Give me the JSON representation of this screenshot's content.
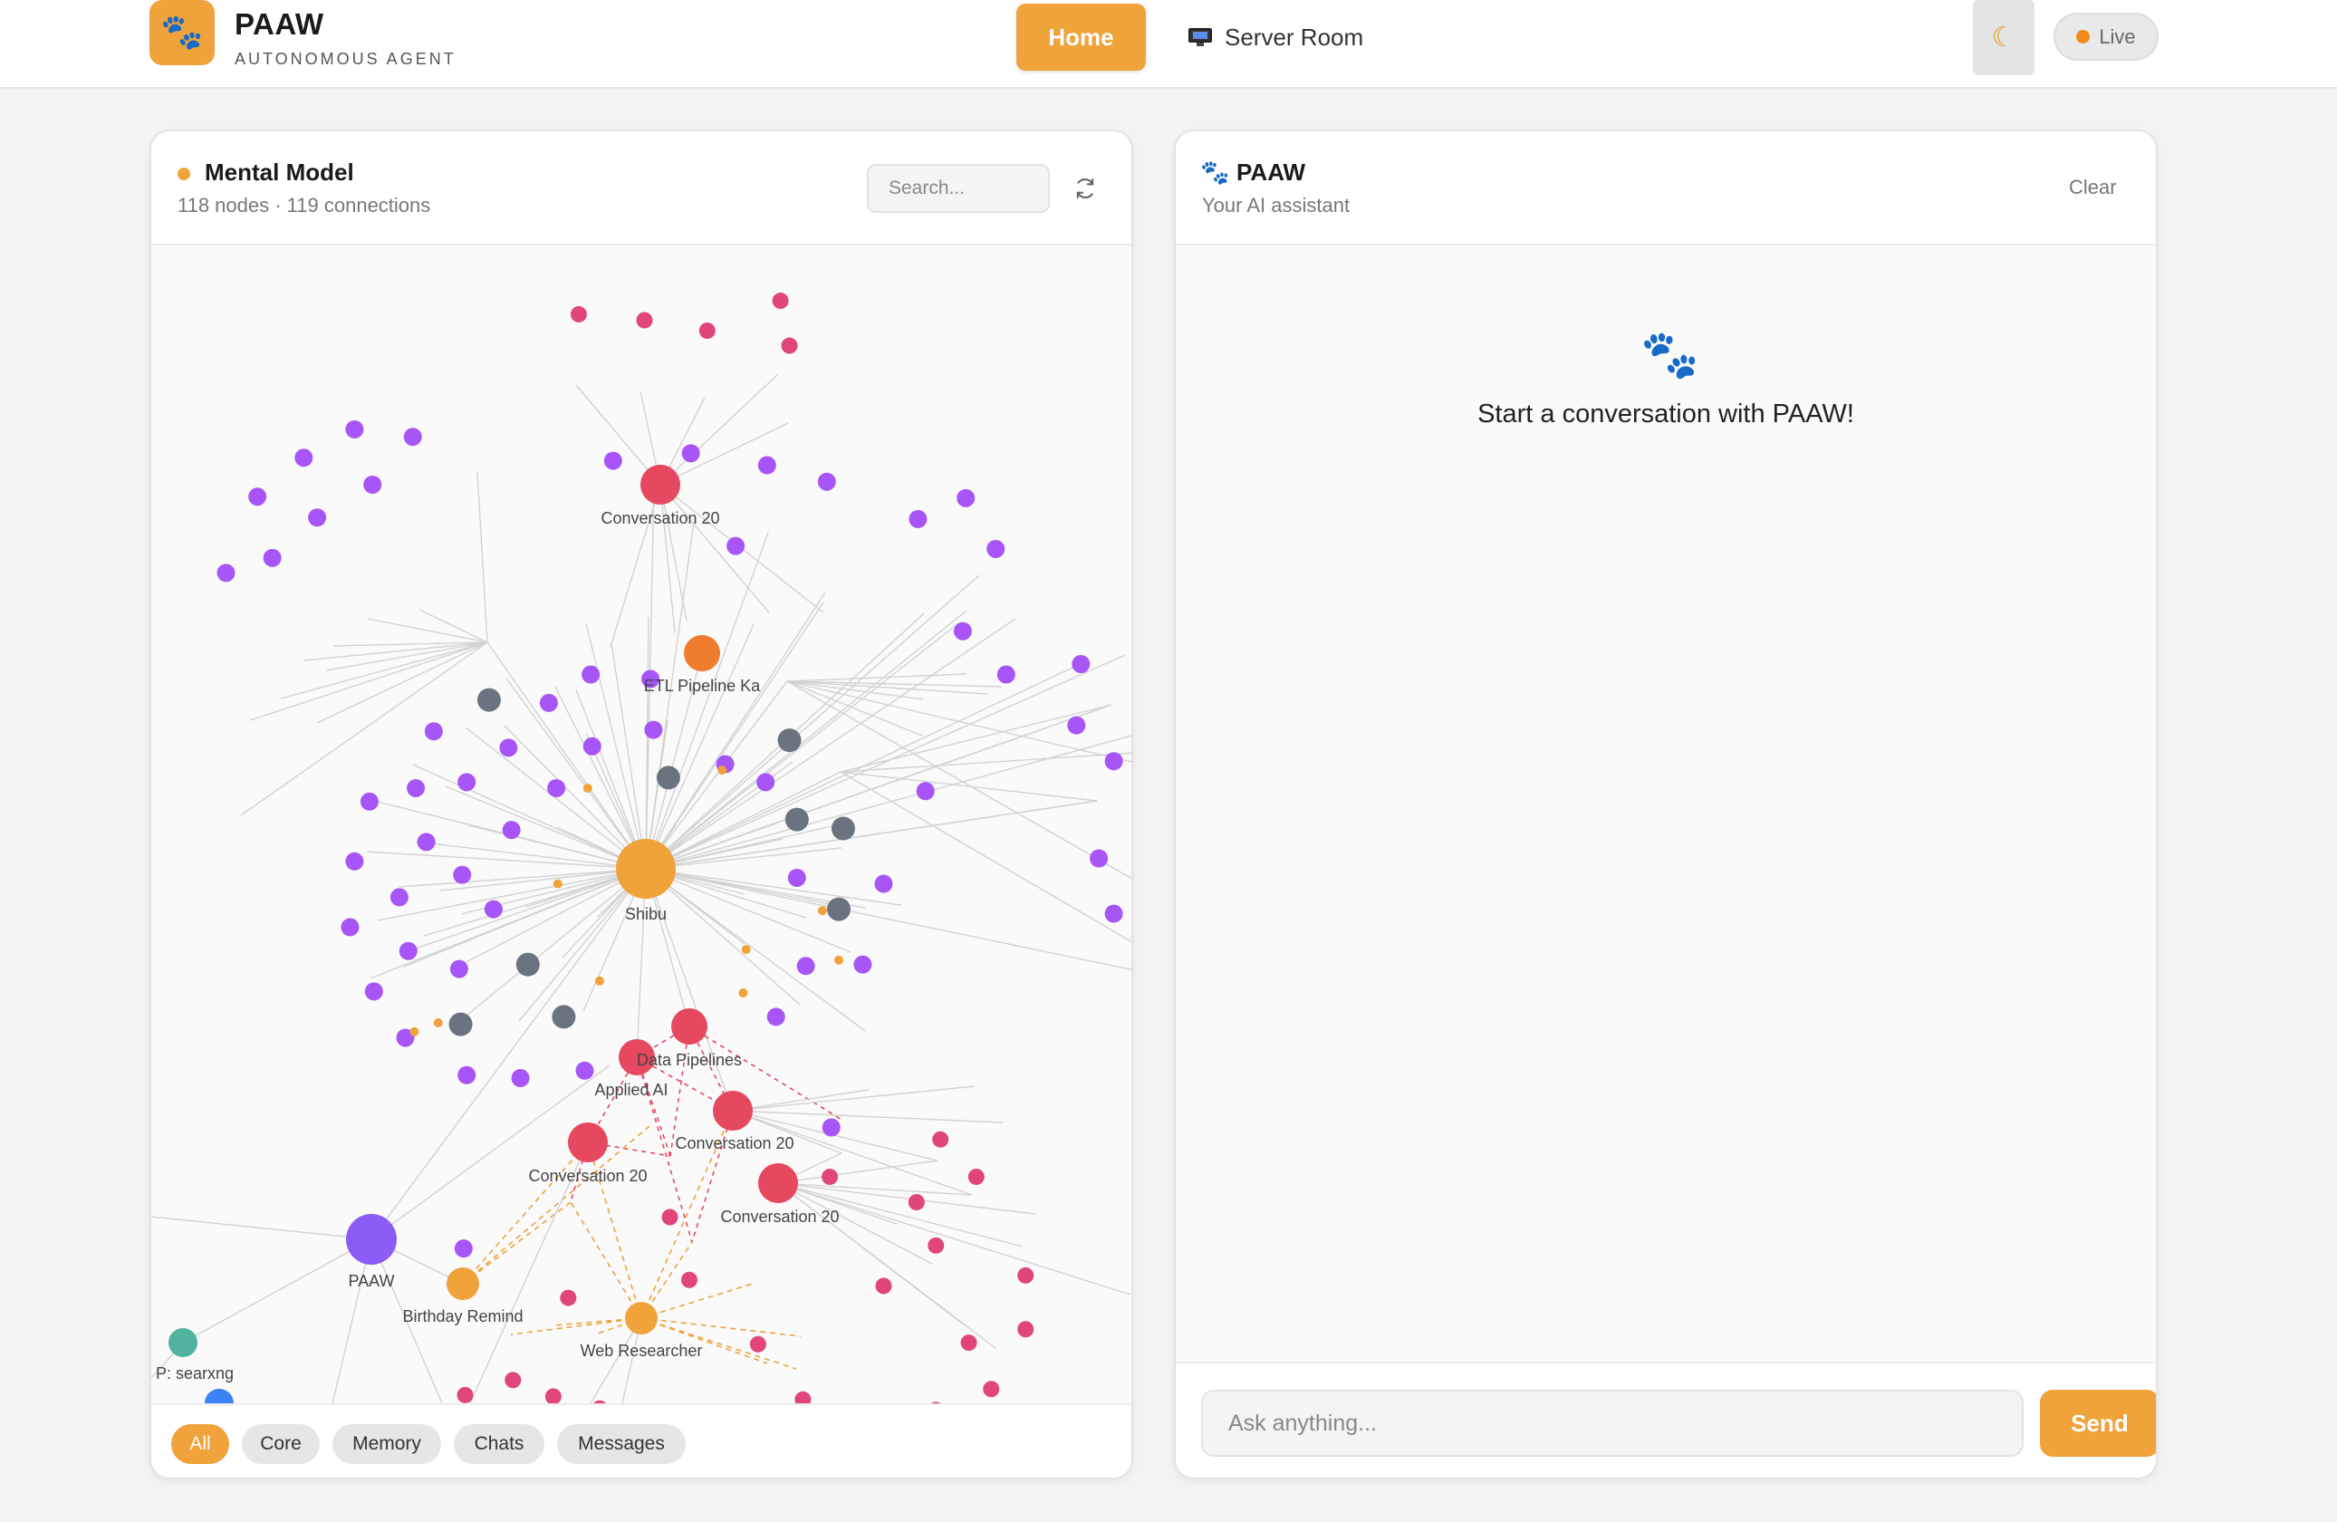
{
  "header": {
    "brand_title": "PAAW",
    "brand_subtitle": "AUTONOMOUS AGENT",
    "logo_icon": "paw-icon",
    "nav": {
      "home": "Home",
      "server_room": "Server Room"
    },
    "theme_icon": "moon-icon",
    "live_label": "Live"
  },
  "mental_model": {
    "title": "Mental Model",
    "stats": "118 nodes · 119 connections",
    "search_placeholder": "Search...",
    "filters": [
      "All",
      "Core",
      "Memory",
      "Chats",
      "Messages"
    ],
    "active_filter": "All",
    "node_labels": {
      "center": "Shibu",
      "conv_top": "Conversation 20",
      "etl": "ETL Pipeline Ka",
      "data_pipelines": "Data Pipelines",
      "applied_ai": "Applied AI",
      "conv_mid": "Conversation 20",
      "conv_left": "Conversation 20",
      "conv_right": "Conversation 20",
      "paaw": "PAAW",
      "birthday": "Birthday Remind",
      "web_researcher": "Web Researcher",
      "searxng": "P: searxng"
    },
    "colors": {
      "core": "#f0a23b",
      "memory": "#a855f7",
      "chat": "#e5485f",
      "message": "#e0457b",
      "topic": "#6b7280",
      "agent": "#8b5cf6",
      "tool": "#4fb3a0",
      "skill": "#ef7c2c"
    }
  },
  "chat": {
    "title": "PAAW",
    "subtitle": "Your AI assistant",
    "clear_label": "Clear",
    "empty_message": "Start a conversation with PAAW!",
    "input_placeholder": "Ask anything...",
    "send_label": "Send"
  }
}
